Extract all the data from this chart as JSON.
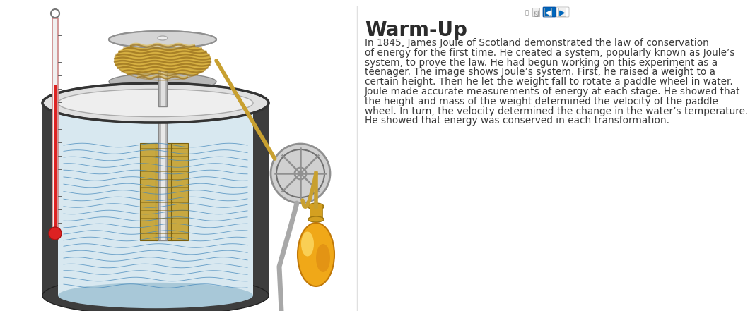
{
  "bg_color": "#ffffff",
  "title": "Warm-Up",
  "title_fontsize": 20,
  "title_color": "#2c2c2c",
  "body_text": "In 1845, James Joule of Scotland demonstrated the law of conservation\nof energy for the first time. He created a system, popularly known as Joule’s\nsystem, to prove the law. He had begun working on this experiment as a\nteenager. The image shows Joule’s system. First, he raised a weight to a\ncertain height. Then he let the weight fall to rotate a paddle wheel in water.\nJoule made accurate measurements of energy at each stage. He showed that\nthe height and mass of the weight determined the velocity of the paddle\nwheel. In turn, the velocity determined the change in the water’s temperature.\nHe showed that energy was conserved in each transformation.",
  "body_fontsize": 9.8,
  "body_color": "#3a3a3a",
  "rope_color": "#c8a030",
  "pulley_color": "#a8a8a8",
  "weight_color": "#e8a010",
  "thermometer_red": "#cc2222",
  "water_wave_color": "#4488bb",
  "spool_disk_color": "#c0c0c0",
  "outer_cyl_color": "#3a3a3a",
  "shaft_color": "#b0b0b0",
  "frame_color": "#a0a0a0"
}
